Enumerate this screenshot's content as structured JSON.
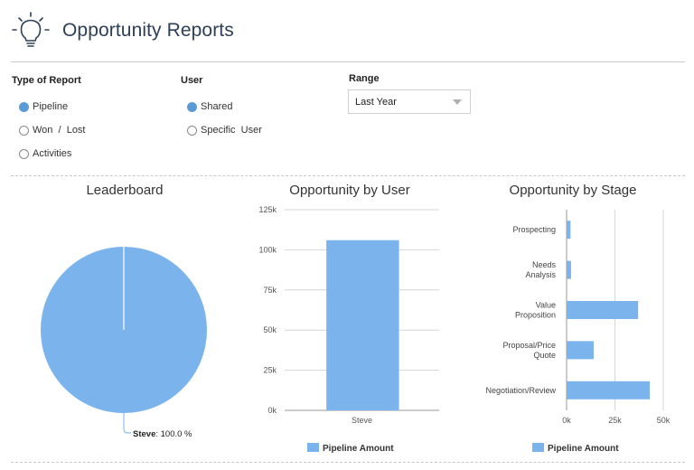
{
  "header": {
    "title": "Opportunity Reports",
    "icon": "lightbulb-icon"
  },
  "filters": {
    "type_of_report": {
      "label": "Type of Report",
      "options": [
        {
          "label": "Pipeline",
          "selected": true
        },
        {
          "label": "Won  /  Lost",
          "selected": false
        },
        {
          "label": "Activities",
          "selected": false
        }
      ]
    },
    "user": {
      "label": "User",
      "options": [
        {
          "label": "Shared",
          "selected": true
        },
        {
          "label": "Specific  User",
          "selected": false
        }
      ]
    },
    "range": {
      "label": "Range",
      "selected": "Last Year"
    }
  },
  "colors": {
    "accent": "#5b9bd5",
    "bar": "#7bb3ec",
    "title": "#2e4057"
  },
  "panels": {
    "leaderboard": {
      "title": "Leaderboard"
    },
    "by_user": {
      "title": "Opportunity by User"
    },
    "by_stage": {
      "title": "Opportunity by Stage"
    }
  },
  "chart_data": [
    {
      "type": "pie",
      "title": "Leaderboard",
      "slices": [
        {
          "label": "Steve",
          "value": 100.0,
          "display": "100.0 %"
        }
      ]
    },
    {
      "type": "bar",
      "title": "Opportunity by User",
      "categories": [
        "Steve"
      ],
      "series": [
        {
          "name": "Pipeline Amount",
          "values": [
            106000
          ]
        }
      ],
      "yticks": [
        "0k",
        "25k",
        "50k",
        "75k",
        "100k",
        "125k"
      ],
      "ylim": [
        0,
        125000
      ],
      "grid": true,
      "legend": "bottom"
    },
    {
      "type": "bar",
      "orientation": "horizontal",
      "title": "Opportunity by Stage",
      "categories": [
        "Prospecting",
        "Needs Analysis",
        "Value Proposition",
        "Proposal/Price Quote",
        "Negotiation/Review"
      ],
      "category_lines": [
        [
          "Prospecting"
        ],
        [
          "Needs",
          "Analysis"
        ],
        [
          "Value",
          "Proposition"
        ],
        [
          "Proposal/Price",
          "Quote"
        ],
        [
          "Negotiation/Review"
        ]
      ],
      "series": [
        {
          "name": "Pipeline Amount",
          "values": [
            2000,
            2300,
            37000,
            14000,
            43000
          ]
        }
      ],
      "xticks": [
        "0k",
        "25k",
        "50k"
      ],
      "xlim": [
        0,
        50000
      ],
      "grid": true,
      "legend": "bottom"
    }
  ]
}
